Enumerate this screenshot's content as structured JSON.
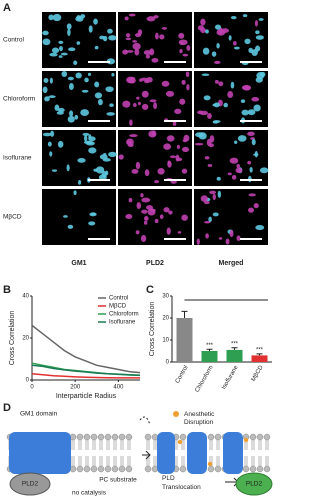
{
  "panel_labels": [
    "A",
    "B",
    "C",
    "D"
  ],
  "panel_a": {
    "rows": [
      "Control",
      "Chloroform",
      "Isoflurane",
      "MβCD"
    ],
    "row_colors": [
      "#222222",
      "#2e9e50",
      "#2e9e50",
      "#e03030"
    ],
    "columns": [
      "GM1",
      "PLD2",
      "Merged"
    ],
    "column_colors": [
      "#5cc8e0",
      "#c040b0",
      "#555555"
    ]
  },
  "chart_data": [
    {
      "type": "line",
      "xlabel": "Interparticle Radius",
      "ylabel": "Cross Correlation",
      "x": [
        0,
        50,
        100,
        150,
        200,
        250,
        300,
        350,
        400,
        450,
        500
      ],
      "series": [
        {
          "name": "Control",
          "color": "#666666",
          "values": [
            26,
            22,
            18,
            14,
            11,
            9,
            7,
            6,
            5,
            4,
            3.5
          ]
        },
        {
          "name": "MβCD",
          "color": "#e03030",
          "values": [
            3,
            2.5,
            2,
            1.8,
            1.5,
            1.3,
            1.2,
            1.1,
            1,
            1,
            1
          ]
        },
        {
          "name": "Chloroform",
          "color": "#2e9e50",
          "values": [
            8,
            7,
            6,
            5,
            4.5,
            4,
            3.5,
            3,
            2.8,
            2.5,
            2.3
          ]
        },
        {
          "name": "Isoflurane",
          "color": "#1b7a55",
          "values": [
            7,
            6.5,
            5.5,
            4.8,
            4.2,
            3.8,
            3.3,
            3,
            2.7,
            2.4,
            2.2
          ]
        }
      ],
      "xlim": [
        0,
        500
      ],
      "xticks": [
        0,
        200,
        400
      ],
      "ylim": [
        0,
        40
      ],
      "yticks": [
        0,
        20,
        40
      ],
      "legend": "upper right"
    },
    {
      "type": "bar",
      "ylabel": "Cross Correlation",
      "categories": [
        "Control",
        "Chloroform",
        "Isoflurane",
        "MβCD"
      ],
      "values": [
        20,
        5,
        5.5,
        3
      ],
      "errors": [
        3,
        0.8,
        1,
        0.7
      ],
      "colors": [
        "#888888",
        "#2e9e50",
        "#2e9e50",
        "#e03030"
      ],
      "significance": [
        null,
        "***",
        "***",
        "***"
      ],
      "ylim": [
        0,
        30
      ],
      "yticks": [
        0,
        10,
        20,
        30
      ]
    }
  ],
  "panel_d": {
    "domain_label": "GM1 domain",
    "substrate_label": "PC substrate",
    "enzyme_left": "PLD2",
    "state_left": "no catalysis",
    "disruption_label": "Anesthetic Disruption",
    "translocation_label": "PLD Translocation",
    "enzyme_right": "PLD2"
  }
}
